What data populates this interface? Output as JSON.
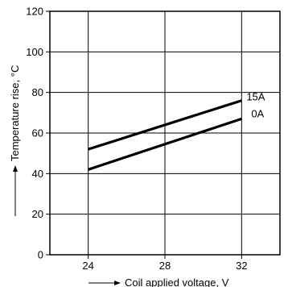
{
  "chart_data": {
    "type": "line",
    "title": "",
    "xlabel": "Coil applied voltage, V",
    "ylabel": "Temperature rise, °C",
    "x_ticks": [
      24,
      28,
      32
    ],
    "y_ticks": [
      0,
      20,
      40,
      60,
      80,
      100,
      120
    ],
    "xlim": [
      22,
      34
    ],
    "ylim": [
      0,
      120
    ],
    "grid": true,
    "legend": "none",
    "series": [
      {
        "name": "15A",
        "x": [
          24,
          32
        ],
        "y": [
          52,
          76
        ],
        "color": "#000000"
      },
      {
        "name": "0A",
        "x": [
          24,
          32
        ],
        "y": [
          42,
          67
        ],
        "color": "#000000"
      }
    ]
  }
}
